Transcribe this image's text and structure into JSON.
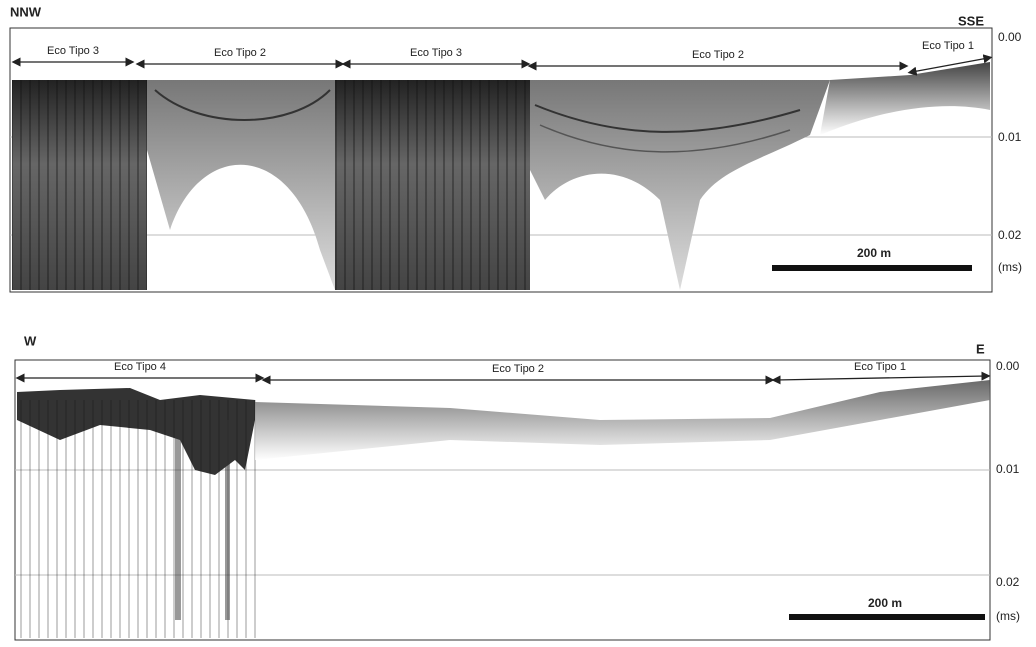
{
  "top_panel": {
    "left_direction": "NNW",
    "right_direction": "SSE",
    "segments": [
      "Eco Tipo 3",
      "Eco Tipo 2",
      "Eco Tipo 3",
      "Eco Tipo 2",
      "Eco Tipo 1"
    ],
    "depth_labels": [
      "0.00",
      "0.01",
      "0.02"
    ],
    "depth_unit": "(ms)",
    "scale_label": "200 m"
  },
  "bottom_panel": {
    "left_direction": "W",
    "right_direction": "E",
    "segments": [
      "Eco Tipo 4",
      "Eco Tipo 2",
      "Eco Tipo 1"
    ],
    "depth_labels": [
      "0.00",
      "0.01",
      "0.02"
    ],
    "depth_unit": "(ms)",
    "scale_label": "200 m"
  }
}
